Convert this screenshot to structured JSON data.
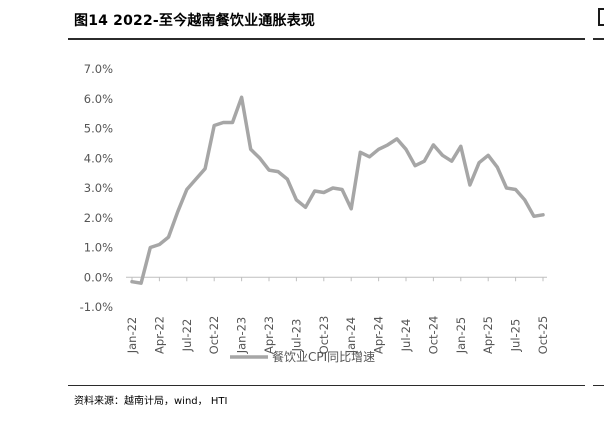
{
  "header": {
    "title": "图14 2022-至今越南餐饮业通胀表现"
  },
  "footer": {
    "source": "资料来源：越南计局，wind， HTI"
  },
  "colors": {
    "line": "#a6a6a6",
    "axis": "#bfbfbf",
    "tick_text": "#555555"
  },
  "chart_data": {
    "type": "line",
    "title": "图14 2022-至今越南餐饮业通胀表现",
    "xlabel": "",
    "ylabel": "",
    "ylim": [
      -1.0,
      7.0
    ],
    "yticks": [
      "7.0%",
      "6.0%",
      "5.0%",
      "4.0%",
      "3.0%",
      "2.0%",
      "1.0%",
      "0.0%",
      "-1.0%"
    ],
    "ytick_values": [
      7,
      6,
      5,
      4,
      3,
      2,
      1,
      0,
      -1
    ],
    "x_tick_labels": [
      "Jan-22",
      "Apr-22",
      "Jul-22",
      "Oct-22",
      "Jan-23",
      "Apr-23",
      "Jul-23",
      "Oct-23",
      "Jan-24",
      "Apr-24",
      "Jul-24",
      "Oct-24",
      "Jan-25",
      "Apr-25",
      "Jul-25",
      "Oct-25"
    ],
    "x": [
      "Jan-22",
      "Feb-22",
      "Mar-22",
      "Apr-22",
      "May-22",
      "Jun-22",
      "Jul-22",
      "Aug-22",
      "Sep-22",
      "Oct-22",
      "Nov-22",
      "Dec-22",
      "Jan-23",
      "Feb-23",
      "Mar-23",
      "Apr-23",
      "May-23",
      "Jun-23",
      "Jul-23",
      "Aug-23",
      "Sep-23",
      "Oct-23",
      "Nov-23",
      "Dec-23",
      "Jan-24",
      "Feb-24",
      "Mar-24",
      "Apr-24",
      "May-24",
      "Jun-24",
      "Jul-24",
      "Aug-24",
      "Sep-24",
      "Oct-24",
      "Nov-24",
      "Dec-24",
      "Jan-25",
      "Feb-25",
      "Mar-25",
      "Apr-25",
      "May-25",
      "Jun-25",
      "Jul-25",
      "Aug-25",
      "Sep-25",
      "Oct-25"
    ],
    "series": [
      {
        "name": "餐饮业CPI同比增速",
        "values": [
          -0.15,
          -0.2,
          1.0,
          1.1,
          1.35,
          2.2,
          2.95,
          3.3,
          3.65,
          5.1,
          5.2,
          5.2,
          6.05,
          4.3,
          4.0,
          3.6,
          3.55,
          3.3,
          2.6,
          2.35,
          2.9,
          2.85,
          3.0,
          2.95,
          2.3,
          4.2,
          4.05,
          4.3,
          4.45,
          4.65,
          4.3,
          3.75,
          3.9,
          4.45,
          4.1,
          3.9,
          4.4,
          3.1,
          3.85,
          4.1,
          3.7,
          3.0,
          2.95,
          2.6,
          2.05,
          2.1
        ]
      }
    ],
    "grid": false,
    "legend_position": "bottom"
  }
}
